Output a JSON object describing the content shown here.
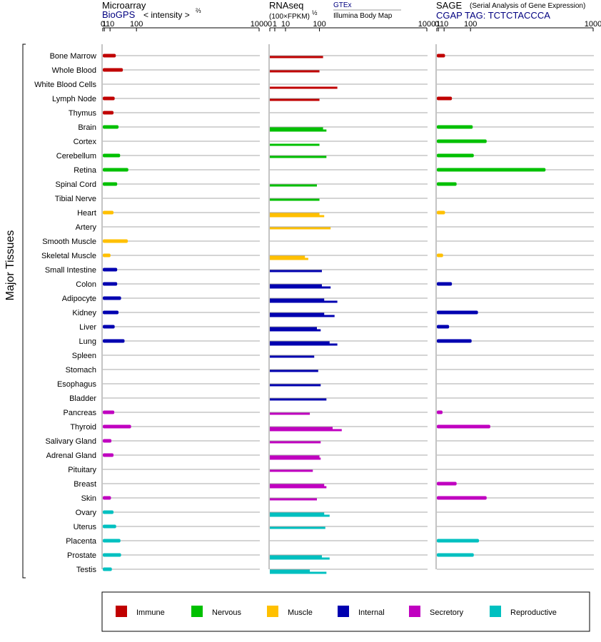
{
  "chart_data": {
    "type": "bar",
    "orientation": "horizontal",
    "y_axis_title": "Major Tissues",
    "categories": [
      "Bone Marrow",
      "Whole Blood",
      "White Blood Cells",
      "Lymph Node",
      "Thymus",
      "Brain",
      "Cortex",
      "Cerebellum",
      "Retina",
      "Spinal Cord",
      "Tibial Nerve",
      "Heart",
      "Artery",
      "Smooth Muscle",
      "Skeletal Muscle",
      "Small Intestine",
      "Colon",
      "Adipocyte",
      "Kidney",
      "Liver",
      "Lung",
      "Spleen",
      "Stomach",
      "Esophagus",
      "Bladder",
      "Pancreas",
      "Thyroid",
      "Salivary Gland",
      "Adrenal Gland",
      "Pituitary",
      "Breast",
      "Skin",
      "Ovary",
      "Uterus",
      "Placenta",
      "Prostate",
      "Testis"
    ],
    "tissue_groups": [
      "Immune",
      "Immune",
      "Immune",
      "Immune",
      "Immune",
      "Nervous",
      "Nervous",
      "Nervous",
      "Nervous",
      "Nervous",
      "Nervous",
      "Muscle",
      "Muscle",
      "Muscle",
      "Muscle",
      "Internal",
      "Internal",
      "Internal",
      "Internal",
      "Internal",
      "Internal",
      "Internal",
      "Internal",
      "Internal",
      "Internal",
      "Secretory",
      "Secretory",
      "Secretory",
      "Secretory",
      "Secretory",
      "Secretory",
      "Secretory",
      "Reproductive",
      "Reproductive",
      "Reproductive",
      "Reproductive",
      "Reproductive"
    ],
    "legend": [
      {
        "name": "Immune",
        "color": "#c00000"
      },
      {
        "name": "Nervous",
        "color": "#00c000"
      },
      {
        "name": "Muscle",
        "color": "#ffc000"
      },
      {
        "name": "Internal",
        "color": "#0000b0"
      },
      {
        "name": "Secretory",
        "color": "#c000c0"
      },
      {
        "name": "Reproductive",
        "color": "#00c0c0"
      }
    ],
    "ticks": [
      "0",
      "1",
      "10",
      "100",
      "1000"
    ],
    "tick_values": [
      0,
      1,
      10,
      100,
      1000
    ],
    "panels": [
      {
        "title": "Microarray",
        "subtitle": "BioGPS",
        "axis_label": "< intensity >",
        "axis_exponent": "⅔",
        "values": [
          24,
          46,
          null,
          21,
          18,
          32,
          null,
          37,
          66,
          28,
          null,
          18,
          null,
          64,
          11,
          28,
          28,
          40,
          32,
          21,
          52,
          null,
          null,
          null,
          null,
          20,
          77,
          13,
          18,
          null,
          null,
          12,
          18,
          25,
          38,
          40,
          14
        ]
      },
      {
        "title": "RNAseq",
        "unit_label": "(100×FPKM)",
        "axis_exponent": "½",
        "series": [
          {
            "name": "GTEx",
            "values": [
              115,
              100,
              null,
              100,
              null,
              115,
              null,
              130,
              null,
              90,
              100,
              100,
              150,
              null,
              50,
              110,
              110,
              120,
              120,
              90,
              145,
              80,
              95,
              105,
              130,
              65,
              160,
              105,
              100,
              75,
              120,
              90,
              120,
              125,
              null,
              110,
              65
            ]
          },
          {
            "name": "Illumina Body Map",
            "values": [
              null,
              null,
              185,
              null,
              null,
              130,
              100,
              null,
              null,
              null,
              null,
              120,
              null,
              null,
              60,
              null,
              150,
              185,
              170,
              105,
              185,
              null,
              null,
              null,
              null,
              null,
              210,
              null,
              105,
              null,
              130,
              null,
              145,
              null,
              null,
              145,
              130
            ]
          }
        ]
      },
      {
        "title": "SAGE",
        "subtitle_note": "(Serial Analysis of Gene Expression)",
        "tag_label": "CGAP TAG: TCTCTACCCA",
        "values": [
          12,
          null,
          null,
          30,
          null,
          110,
          180,
          115,
          580,
          45,
          null,
          12,
          null,
          null,
          8,
          null,
          30,
          null,
          135,
          22,
          105,
          null,
          null,
          null,
          null,
          7,
          200,
          null,
          null,
          null,
          45,
          180,
          null,
          null,
          140,
          115,
          null
        ]
      }
    ]
  }
}
